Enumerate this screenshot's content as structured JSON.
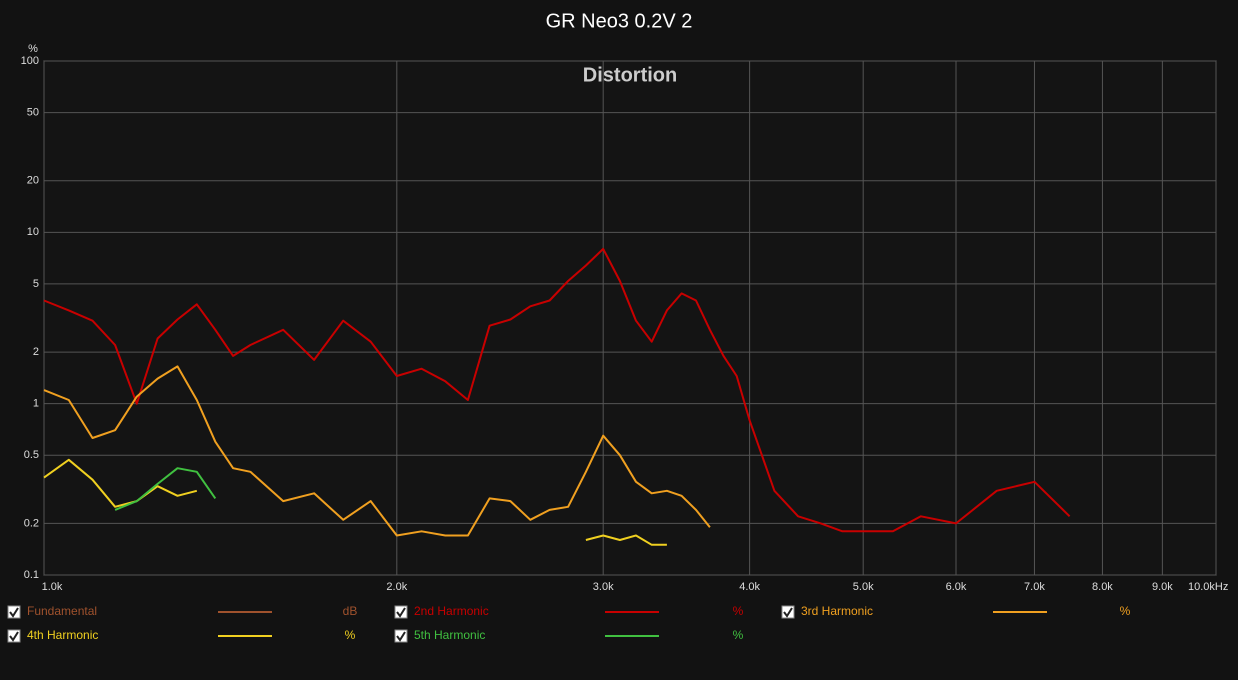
{
  "chart_data": {
    "type": "line",
    "title": "GR Neo3 0.2V 2",
    "subtitle": "Distortion",
    "y_unit_label": "%",
    "log_x": true,
    "log_y": true,
    "grid": true,
    "xlim": [
      1000,
      10000
    ],
    "ylim": [
      0.1,
      100
    ],
    "xticks": [
      {
        "value": 1000,
        "label": "1.0k"
      },
      {
        "value": 2000,
        "label": "2.0k"
      },
      {
        "value": 3000,
        "label": "3.0k"
      },
      {
        "value": 4000,
        "label": "4.0k"
      },
      {
        "value": 5000,
        "label": "5.0k"
      },
      {
        "value": 6000,
        "label": "6.0k"
      },
      {
        "value": 7000,
        "label": "7.0k"
      },
      {
        "value": 8000,
        "label": "8.0k"
      },
      {
        "value": 9000,
        "label": "9.0k"
      },
      {
        "value": 10000,
        "label": "10.0kHz"
      }
    ],
    "yticks": [
      100,
      50,
      20,
      10,
      5,
      2,
      1,
      0.5,
      0.2,
      0.1
    ],
    "x": [
      1000,
      1050,
      1100,
      1150,
      1200,
      1250,
      1300,
      1350,
      1400,
      1450,
      1500,
      1600,
      1700,
      1800,
      1900,
      2000,
      2100,
      2200,
      2300,
      2400,
      2500,
      2600,
      2700,
      2800,
      2900,
      3000,
      3100,
      3200,
      3300,
      3400,
      3500,
      3600,
      3700,
      3800,
      3900,
      4000,
      4200,
      4400,
      4600,
      4800,
      5000,
      5300,
      5600,
      6000,
      6500,
      7000,
      7500
    ],
    "series": [
      {
        "name": "Fundamental",
        "unit": "dB",
        "color": "#a0522d"
      },
      {
        "name": "2nd Harmonic",
        "unit": "%",
        "color": "#c80000",
        "values": [
          4.0,
          3.5,
          3.05,
          2.2,
          1.0,
          2.4,
          3.1,
          3.8,
          2.7,
          1.9,
          2.2,
          2.7,
          1.8,
          3.05,
          2.3,
          1.45,
          1.6,
          1.35,
          1.05,
          2.85,
          3.1,
          3.7,
          4.0,
          5.2,
          6.4,
          8.0,
          5.2,
          3.05,
          2.3,
          3.5,
          4.4,
          4.0,
          2.7,
          1.9,
          1.45,
          0.8,
          0.31,
          0.22,
          0.2,
          0.18,
          0.18,
          0.18,
          0.22,
          0.2,
          0.31,
          0.35,
          0.22
        ]
      },
      {
        "name": "3rd Harmonic",
        "unit": "%",
        "color": "#f0a020",
        "values": [
          1.2,
          1.05,
          0.63,
          0.7,
          1.1,
          1.4,
          1.65,
          1.05,
          0.6,
          0.42,
          0.4,
          0.27,
          0.3,
          0.21,
          0.27,
          0.17,
          0.18,
          0.17,
          0.17,
          0.28,
          0.27,
          0.21,
          0.24,
          0.25,
          0.4,
          0.65,
          0.5,
          0.35,
          0.3,
          0.31,
          0.29,
          0.24,
          0.19,
          null,
          null,
          null,
          null,
          null,
          null,
          null,
          null,
          null,
          null,
          null,
          null,
          null,
          null
        ]
      },
      {
        "name": "4th Harmonic",
        "unit": "%",
        "color": "#f0d020",
        "values": [
          0.37,
          0.47,
          0.36,
          0.25,
          0.27,
          0.33,
          0.29,
          0.31,
          null,
          null,
          null,
          null,
          null,
          null,
          null,
          null,
          null,
          null,
          null,
          null,
          null,
          null,
          null,
          null,
          0.16,
          0.17,
          0.16,
          0.17,
          0.15,
          0.15,
          null,
          null,
          null,
          null,
          null,
          null,
          null,
          null,
          null,
          null,
          null,
          null,
          null,
          null,
          null,
          null,
          null
        ]
      },
      {
        "name": "5th Harmonic",
        "unit": "%",
        "color": "#40c040",
        "values": [
          null,
          null,
          null,
          0.24,
          0.27,
          0.34,
          0.42,
          0.4,
          0.28,
          null,
          null,
          null,
          null,
          null,
          null,
          null,
          null,
          null,
          null,
          null,
          null,
          null,
          null,
          null,
          null,
          null,
          null,
          null,
          null,
          null,
          null,
          null,
          null,
          null,
          null,
          null,
          null,
          null,
          null,
          null,
          null,
          null,
          null,
          null,
          null,
          null,
          null
        ]
      }
    ]
  }
}
